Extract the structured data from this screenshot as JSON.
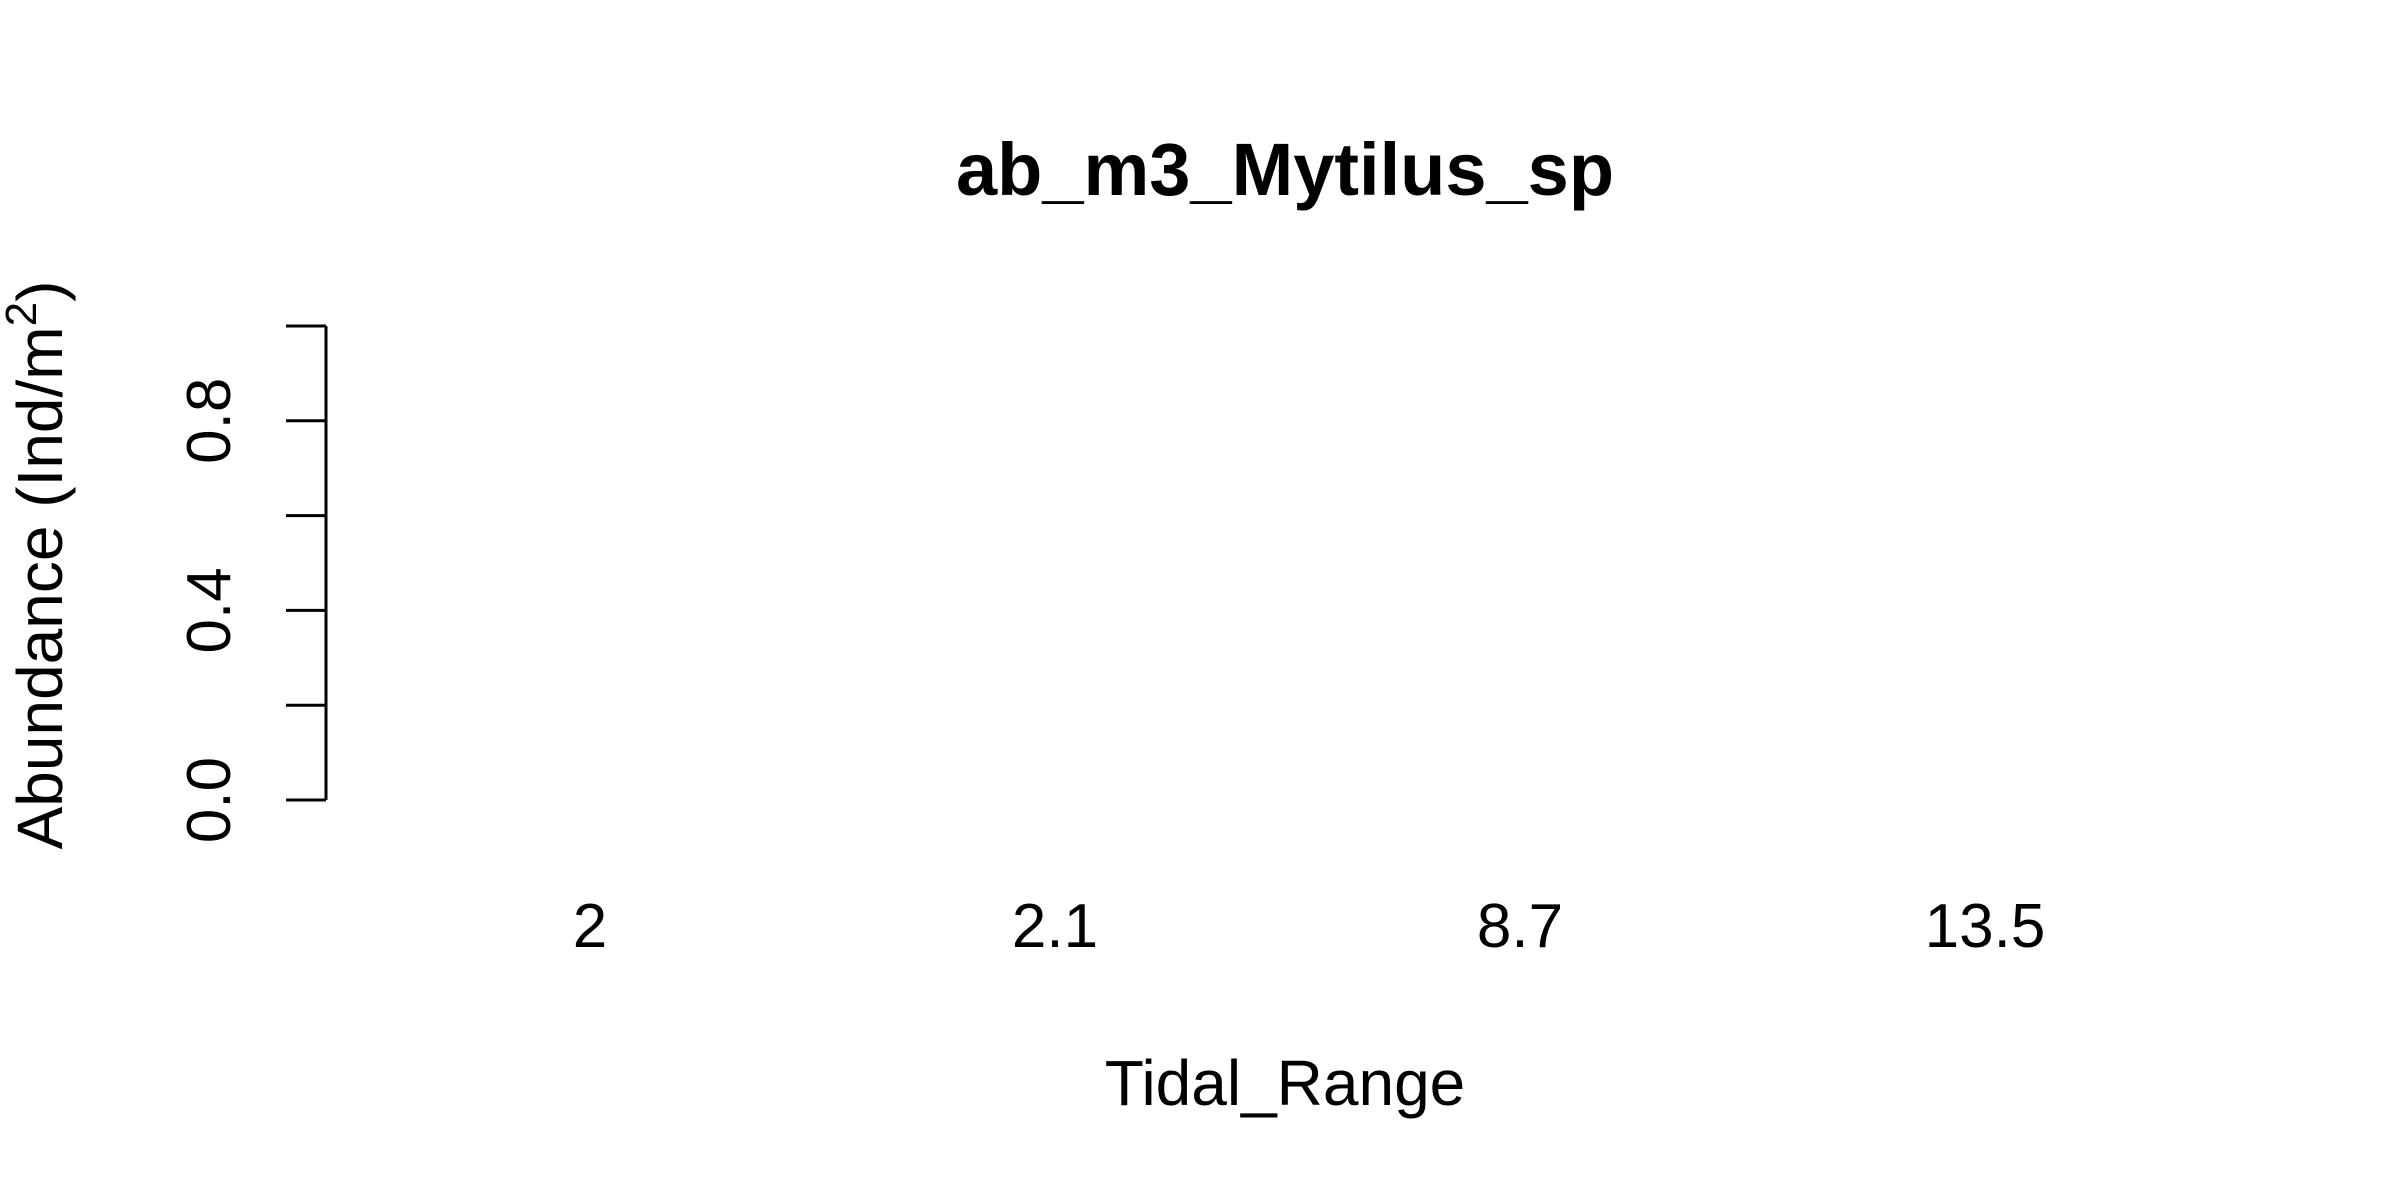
{
  "chart_data": {
    "type": "bar",
    "title": "ab_m3_Mytilus_sp",
    "xlabel": "Tidal_Range",
    "ylabel": {
      "main": "Abundance (Ind/m",
      "superscript": "2",
      "close": ")"
    },
    "categories": [
      "2",
      "2.1",
      "8.7",
      "13.5"
    ],
    "values": [
      0,
      0,
      0,
      0
    ],
    "ylim": [
      0,
      1
    ],
    "yticks": [
      0.0,
      0.2,
      0.4,
      0.6,
      0.8,
      1.0
    ],
    "ytick_labels": [
      "0.0",
      "",
      "0.4",
      "",
      "0.8",
      ""
    ],
    "grid": false,
    "legend": "none"
  }
}
